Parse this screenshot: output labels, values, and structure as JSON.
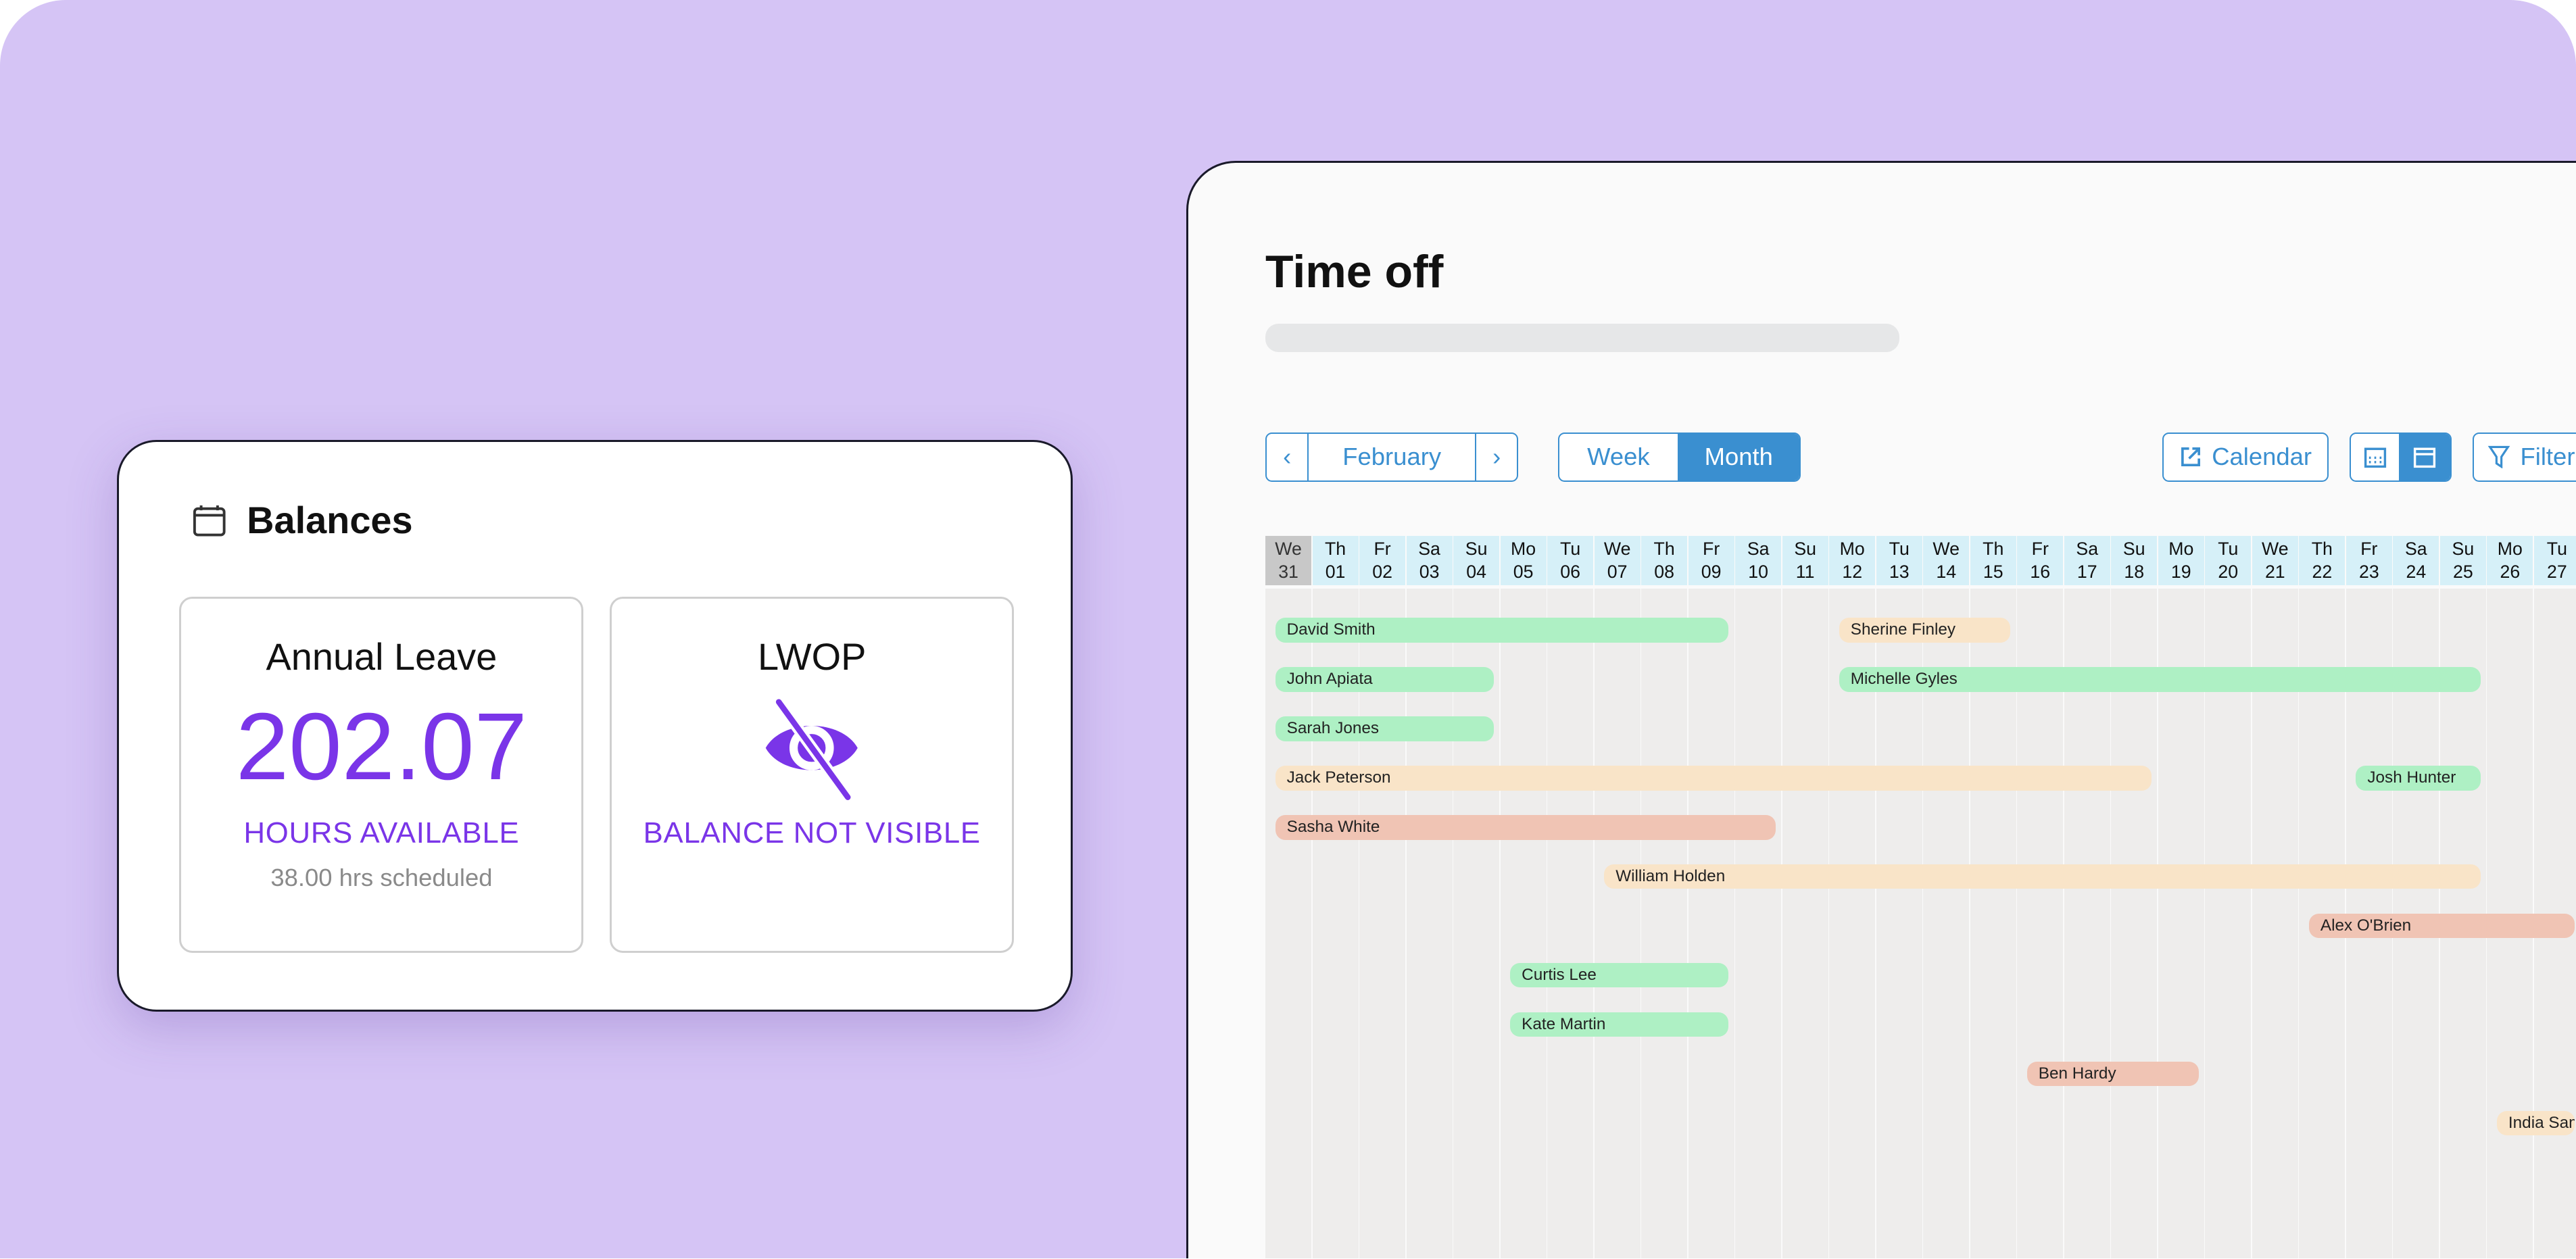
{
  "balances": {
    "title": "Balances",
    "icon": "calendar-icon",
    "tiles": [
      {
        "title": "Annual Leave",
        "value": "202.07",
        "label": "HOURS AVAILABLE",
        "scheduled": "38.00 hrs scheduled"
      },
      {
        "title": "LWOP",
        "icon": "eye-slash-icon",
        "label": "BALANCE NOT VISIBLE"
      }
    ],
    "accent": "#7a35e8"
  },
  "timeoff": {
    "title": "Time off",
    "month": "February",
    "view_week": "Week",
    "view_month": "Month",
    "active_view": "Month",
    "calendar_label": "Calendar",
    "filter_label": "Filter",
    "accent": "#3a8fd0",
    "days": [
      {
        "dow": "We",
        "d": "31",
        "today": true
      },
      {
        "dow": "Th",
        "d": "01"
      },
      {
        "dow": "Fr",
        "d": "02"
      },
      {
        "dow": "Sa",
        "d": "03"
      },
      {
        "dow": "Su",
        "d": "04"
      },
      {
        "dow": "Mo",
        "d": "05"
      },
      {
        "dow": "Tu",
        "d": "06"
      },
      {
        "dow": "We",
        "d": "07"
      },
      {
        "dow": "Th",
        "d": "08"
      },
      {
        "dow": "Fr",
        "d": "09"
      },
      {
        "dow": "Sa",
        "d": "10"
      },
      {
        "dow": "Su",
        "d": "11"
      },
      {
        "dow": "Mo",
        "d": "12"
      },
      {
        "dow": "Tu",
        "d": "13"
      },
      {
        "dow": "We",
        "d": "14"
      },
      {
        "dow": "Th",
        "d": "15"
      },
      {
        "dow": "Fr",
        "d": "16"
      },
      {
        "dow": "Sa",
        "d": "17"
      },
      {
        "dow": "Su",
        "d": "18"
      },
      {
        "dow": "Mo",
        "d": "19"
      },
      {
        "dow": "Tu",
        "d": "20"
      },
      {
        "dow": "We",
        "d": "21"
      },
      {
        "dow": "Th",
        "d": "22"
      },
      {
        "dow": "Fr",
        "d": "23"
      },
      {
        "dow": "Sa",
        "d": "24"
      },
      {
        "dow": "Su",
        "d": "25"
      },
      {
        "dow": "Mo",
        "d": "26"
      },
      {
        "dow": "Tu",
        "d": "27"
      }
    ],
    "status_colors": {
      "green": "#aef0c4",
      "yellow": "#f9e4c8",
      "red": "#f0c4b4"
    },
    "rows": [
      [
        {
          "name": "David Smith",
          "start": "31",
          "end": "09",
          "status": "green"
        },
        {
          "name": "Sherine Finley",
          "start": "12",
          "end": "15",
          "status": "yellow"
        }
      ],
      [
        {
          "name": "John Apiata",
          "start": "31",
          "end": "04",
          "status": "green"
        },
        {
          "name": "Michelle Gyles",
          "start": "12",
          "end": "25",
          "status": "green"
        }
      ],
      [
        {
          "name": "Sarah Jones",
          "start": "31",
          "end": "04",
          "status": "green"
        }
      ],
      [
        {
          "name": "Jack Peterson",
          "start": "31",
          "end": "18",
          "status": "yellow"
        },
        {
          "name": "Josh Hunter",
          "start": "23",
          "end": "25",
          "status": "green"
        }
      ],
      [
        {
          "name": "Sasha White",
          "start": "31",
          "end": "10",
          "status": "red"
        }
      ],
      [
        {
          "name": "William Holden",
          "start": "07",
          "end": "25",
          "status": "yellow"
        }
      ],
      [
        {
          "name": "Alex O'Brien",
          "start": "22",
          "end": "27",
          "status": "red"
        }
      ],
      [
        {
          "name": "Curtis Lee",
          "start": "05",
          "end": "09",
          "status": "green"
        }
      ],
      [
        {
          "name": "Kate Martin",
          "start": "05",
          "end": "09",
          "status": "green"
        }
      ],
      [
        {
          "name": "Ben Hardy",
          "start": "16",
          "end": "19",
          "status": "red"
        }
      ],
      [
        {
          "name": "India Sam",
          "start": "26",
          "end": "27",
          "status": "yellow"
        }
      ]
    ]
  }
}
